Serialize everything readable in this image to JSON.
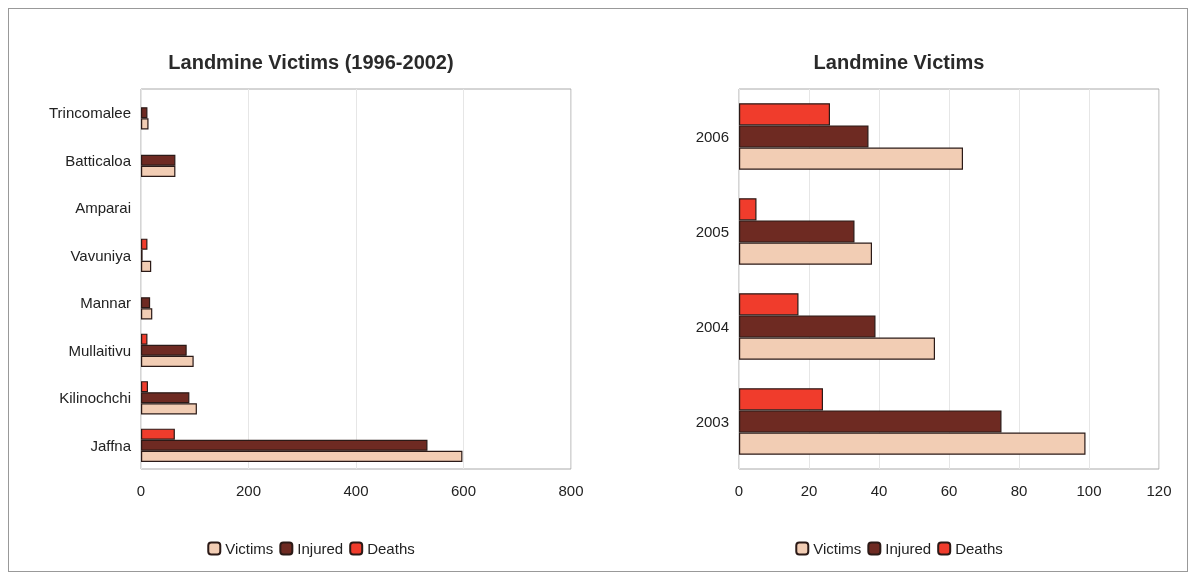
{
  "chart_data": [
    {
      "type": "bar",
      "orientation": "horizontal",
      "title": "Landmine Victims (1996-2002)",
      "categories": [
        "Trincomalee",
        "Batticaloa",
        "Amparai",
        "Vavuniya",
        "Mannar",
        "Mullaitivu",
        "Kilinochchi",
        "Jaffna"
      ],
      "series": [
        {
          "name": "Victims",
          "color": "#f2cdb4",
          "values": [
            14,
            64,
            0,
            19,
            21,
            98,
            104,
            598
          ]
        },
        {
          "name": "Injured",
          "color": "#6e2a22",
          "values": [
            12,
            64,
            0,
            3,
            17,
            85,
            90,
            533
          ]
        },
        {
          "name": "Deaths",
          "color": "#f03c2c",
          "values": [
            0,
            0,
            0,
            12,
            0,
            12,
            13,
            63
          ]
        }
      ],
      "xlim": [
        0,
        800
      ],
      "xticks": [
        0,
        200,
        400,
        600,
        800
      ],
      "grid": "x",
      "legend": "bottom"
    },
    {
      "type": "bar",
      "orientation": "horizontal",
      "title": "Landmine Victims",
      "categories": [
        "2006",
        "2005",
        "2004",
        "2003"
      ],
      "series": [
        {
          "name": "Victims",
          "color": "#f2cdb4",
          "values": [
            64,
            38,
            56,
            99
          ]
        },
        {
          "name": "Injured",
          "color": "#6e2a22",
          "values": [
            37,
            33,
            39,
            75
          ]
        },
        {
          "name": "Deaths",
          "color": "#f03c2c",
          "values": [
            26,
            5,
            17,
            24
          ]
        }
      ],
      "xlim": [
        0,
        120
      ],
      "xticks": [
        0,
        20,
        40,
        60,
        80,
        100,
        120
      ],
      "grid": "x",
      "legend": "bottom"
    }
  ]
}
